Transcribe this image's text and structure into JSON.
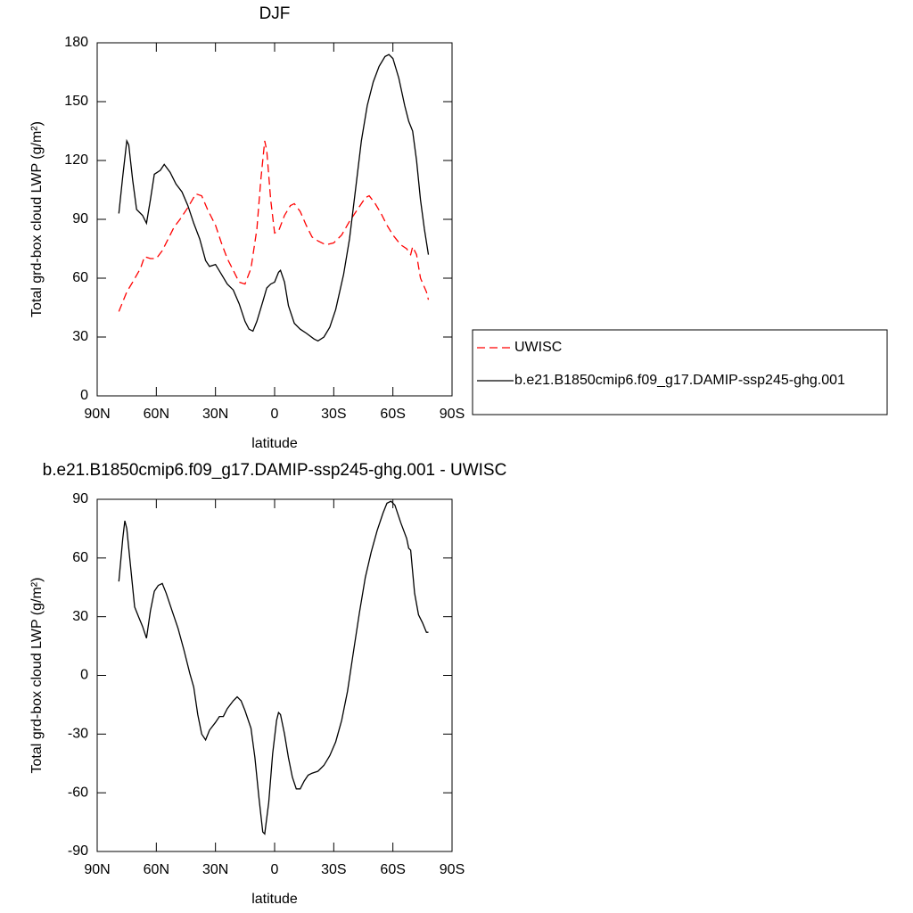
{
  "chart_data": [
    {
      "type": "line",
      "title": "DJF",
      "x_label": "latitude",
      "y_label": "Total grd-box cloud LWP (g/m²)",
      "xlim": [
        90,
        -90
      ],
      "xticks": [
        {
          "value": 90,
          "label": "90N"
        },
        {
          "value": 60,
          "label": "60N"
        },
        {
          "value": 30,
          "label": "30N"
        },
        0,
        {
          "value": -30,
          "label": "30S"
        },
        {
          "value": -60,
          "label": "60S"
        },
        {
          "value": -90,
          "label": "90S"
        }
      ],
      "ylim": [
        0,
        180
      ],
      "yticks": [
        0,
        30,
        60,
        90,
        120,
        150,
        180
      ],
      "legend_position": "right",
      "series": [
        {
          "name": "UWISC",
          "color": "#ff0000",
          "linestyle": "dashed",
          "x": [
            79,
            75,
            72,
            68,
            66,
            63,
            60,
            57,
            54,
            51,
            48,
            44,
            40,
            37,
            34,
            30,
            27,
            24,
            21,
            18,
            15,
            12,
            9,
            7,
            5,
            4,
            2,
            0,
            -2,
            -5,
            -8,
            -10,
            -13,
            -16,
            -19,
            -22,
            -26,
            -30,
            -34,
            -38,
            -42,
            -46,
            -48,
            -51,
            -54,
            -57,
            -60,
            -64,
            -67,
            -69,
            -70,
            -72,
            -74,
            -77,
            -78
          ],
          "values": [
            43,
            53,
            58,
            65,
            71,
            70,
            70,
            74,
            80,
            86,
            90,
            96,
            103,
            102,
            95,
            87,
            78,
            70,
            64,
            58,
            57,
            65,
            85,
            110,
            130,
            125,
            100,
            83,
            84,
            92,
            97,
            98,
            94,
            87,
            81,
            79,
            77,
            78,
            82,
            89,
            95,
            101,
            102,
            98,
            93,
            87,
            82,
            77,
            75,
            72,
            76,
            72,
            60,
            53,
            49
          ]
        },
        {
          "name": "b.e21.B1850cmip6.f09_g17.DAMIP-ssp245-ghg.001",
          "color": "#000000",
          "linestyle": "solid",
          "x": [
            79,
            77,
            75,
            74,
            72,
            70,
            67,
            65,
            63,
            61,
            58,
            56,
            53,
            50,
            47,
            44,
            41,
            38,
            35,
            33,
            30,
            27,
            24,
            21,
            18,
            15,
            13,
            11,
            9,
            6,
            4,
            2,
            0,
            -2,
            -3,
            -5,
            -7,
            -10,
            -13,
            -16,
            -20,
            -22,
            -25,
            -28,
            -31,
            -35,
            -38,
            -41,
            -44,
            -47,
            -50,
            -53,
            -56,
            -58,
            -60,
            -63,
            -66,
            -68,
            -70,
            -72,
            -74,
            -76,
            -78
          ],
          "values": [
            93,
            112,
            130,
            128,
            110,
            95,
            92,
            88,
            100,
            113,
            115,
            118,
            114,
            108,
            104,
            97,
            88,
            80,
            69,
            66,
            67,
            62,
            57,
            54,
            47,
            38,
            34,
            33,
            38,
            48,
            55,
            57,
            58,
            63,
            64,
            58,
            46,
            37,
            34,
            32,
            29,
            28,
            30,
            35,
            44,
            62,
            80,
            105,
            130,
            148,
            160,
            168,
            173,
            174,
            172,
            162,
            148,
            140,
            135,
            120,
            100,
            85,
            72
          ]
        }
      ]
    },
    {
      "type": "line",
      "title": "b.e21.B1850cmip6.f09_g17.DAMIP-ssp245-ghg.001 - UWISC",
      "x_label": "latitude",
      "y_label": "Total grd-box cloud LWP (g/m²)",
      "xlim": [
        90,
        -90
      ],
      "xticks": [
        {
          "value": 90,
          "label": "90N"
        },
        {
          "value": 60,
          "label": "60N"
        },
        {
          "value": 30,
          "label": "30N"
        },
        0,
        {
          "value": -30,
          "label": "30S"
        },
        {
          "value": -60,
          "label": "60S"
        },
        {
          "value": -90,
          "label": "90S"
        }
      ],
      "ylim": [
        -90,
        90
      ],
      "yticks": [
        -90,
        -60,
        -30,
        0,
        30,
        60,
        90
      ],
      "series": [
        {
          "color": "#000000",
          "linestyle": "solid",
          "x": [
            79,
            77,
            76,
            75,
            73,
            71,
            69,
            67,
            65,
            63,
            61,
            59,
            57,
            55,
            52,
            49,
            46,
            43,
            41,
            39,
            37,
            35,
            33,
            30,
            28,
            26,
            24,
            21,
            19,
            17,
            15,
            12,
            10,
            8,
            6,
            5,
            3,
            1,
            -1,
            -2,
            -3,
            -5,
            -7,
            -9,
            -11,
            -13,
            -15,
            -17,
            -19,
            -22,
            -25,
            -28,
            -31,
            -34,
            -37,
            -40,
            -43,
            -46,
            -49,
            -52,
            -55,
            -57,
            -59,
            -61,
            -64,
            -67,
            -68,
            -69,
            -71,
            -73,
            -75,
            -77,
            -78
          ],
          "values": [
            48,
            70,
            79,
            75,
            55,
            35,
            30,
            25,
            19,
            33,
            43,
            46,
            47,
            42,
            33,
            24,
            13,
            1,
            -6,
            -20,
            -30,
            -33,
            -28,
            -24,
            -21,
            -21,
            -17,
            -13,
            -11,
            -13,
            -18,
            -27,
            -42,
            -62,
            -80,
            -81,
            -65,
            -40,
            -23,
            -19,
            -20,
            -30,
            -42,
            -52,
            -58,
            -58,
            -54,
            -51,
            -50,
            -49,
            -46,
            -41,
            -34,
            -23,
            -8,
            12,
            32,
            50,
            63,
            74,
            83,
            88,
            89,
            87,
            78,
            70,
            65,
            64,
            42,
            31,
            27,
            22,
            22
          ]
        }
      ]
    }
  ]
}
